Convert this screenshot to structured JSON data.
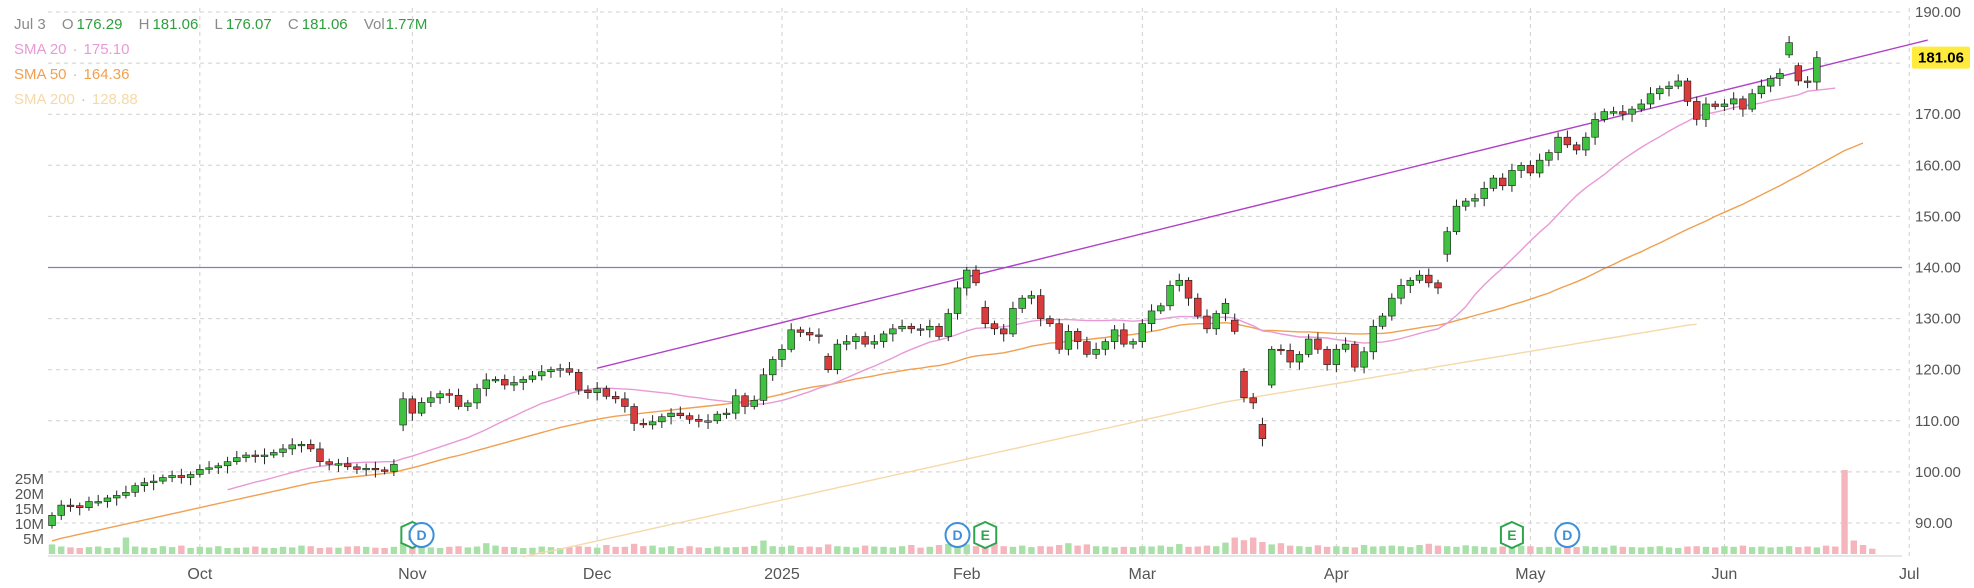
{
  "legend": {
    "date": "Jul 3",
    "open_key": "O",
    "open": "176.29",
    "high_key": "H",
    "high": "181.06",
    "low_key": "L",
    "low": "176.07",
    "close_key": "C",
    "close": "181.06",
    "vol_key": "Vol",
    "vol": "1.77M",
    "sma20_label": "SMA 20",
    "sma20_value": "175.10",
    "sma20_color": "#e89ad6",
    "sma50_label": "SMA 50",
    "sma50_value": "164.36",
    "sma50_color": "#f0a050",
    "sma200_label": "SMA 200",
    "sma200_value": "128.88",
    "sma200_color": "#f5d9a8",
    "separator": "·"
  },
  "last_price_label": "181.06",
  "colors": {
    "up": "#41c141",
    "down": "#d93c3c",
    "wick": "#222222",
    "vol_up": "#a8e0a8",
    "vol_down": "#f5b5bc",
    "trendline": "#b040c8",
    "hline": "#8080c0",
    "grid": "#d0d0d0",
    "last_price_bg": "#ffeb3b",
    "earnings": "#2ea44f",
    "dividend": "#3d8fd9"
  },
  "chart_data": {
    "type": "candlestick",
    "y_ticks": [
      "90.00",
      "100.00",
      "110.00",
      "120.00",
      "130.00",
      "140.00",
      "150.00",
      "160.00",
      "170.00",
      "180.00",
      "190.00"
    ],
    "ylim": [
      85,
      191
    ],
    "x_labels": [
      {
        "label": "Oct",
        "index": 16
      },
      {
        "label": "Nov",
        "index": 39
      },
      {
        "label": "Dec",
        "index": 59
      },
      {
        "label": "2025",
        "index": 79
      },
      {
        "label": "Feb",
        "index": 99
      },
      {
        "label": "Mar",
        "index": 118
      },
      {
        "label": "Apr",
        "index": 139
      },
      {
        "label": "May",
        "index": 160
      },
      {
        "label": "Jun",
        "index": 181
      },
      {
        "label": "Jul",
        "index": 201
      }
    ],
    "vol_ticks": [
      "5M",
      "10M",
      "15M",
      "20M",
      "25M"
    ],
    "vol_max_m": 28,
    "closes": [
      91.5,
      93.5,
      93.4,
      93.0,
      94.2,
      94.2,
      94.9,
      95.4,
      96.0,
      97.3,
      97.9,
      98.2,
      98.9,
      99.3,
      98.9,
      99.5,
      100.5,
      100.8,
      101.2,
      102.0,
      102.8,
      103.3,
      103.0,
      103.3,
      103.8,
      104.5,
      105.3,
      105.4,
      104.5,
      102.0,
      101.5,
      101.6,
      101.0,
      100.5,
      100.7,
      100.4,
      100.1,
      101.5,
      114.3,
      111.5,
      113.6,
      114.5,
      115.3,
      115.0,
      112.8,
      113.5,
      116.3,
      118.0,
      118.1,
      117.0,
      117.5,
      118.1,
      118.8,
      119.6,
      120.0,
      120.2,
      119.5,
      116.0,
      115.5,
      116.3,
      114.8,
      114.3,
      112.8,
      109.5,
      109.2,
      109.8,
      110.8,
      111.5,
      111.0,
      110.3,
      109.9,
      110.0,
      111.3,
      111.5,
      114.9,
      112.8,
      114.0,
      119.0,
      122.0,
      124.0,
      127.8,
      127.3,
      126.8,
      126.6,
      120.0,
      125.0,
      125.5,
      126.5,
      125.0,
      125.5,
      127.0,
      128.0,
      128.5,
      128.0,
      127.8,
      128.5,
      126.5,
      131.0,
      136.0,
      139.5,
      137.0,
      129.0,
      128.0,
      127.0,
      132.0,
      134.0,
      134.5,
      130.0,
      129.0,
      124.0,
      127.5,
      125.5,
      123.0,
      124.0,
      125.5,
      127.8,
      125.0,
      125.5,
      129.0,
      131.5,
      132.5,
      136.5,
      137.5,
      134.0,
      130.5,
      128.0,
      131.0,
      133.0,
      127.5,
      114.5,
      113.5,
      106.5,
      124.0,
      123.8,
      121.5,
      123.0,
      126.0,
      124.0,
      121.0,
      124.0,
      125.0,
      120.5,
      123.5,
      128.5,
      130.5,
      134.0,
      136.5,
      137.5,
      138.5,
      137.0,
      136.0,
      147.0,
      152.0,
      153.0,
      153.5,
      155.5,
      157.5,
      156.0,
      159.0,
      160.0,
      158.5,
      161.0,
      162.5,
      165.5,
      164.0,
      163.0,
      165.5,
      169.0,
      170.5,
      170.5,
      170.0,
      171.0,
      172.0,
      174.0,
      175.0,
      175.5,
      176.5,
      172.5,
      169.0,
      172.0,
      171.5,
      172.0,
      173.0,
      171.0,
      174.0,
      175.5,
      177.0,
      178.0,
      184.0,
      176.5,
      176.3,
      181.06
    ],
    "volumes": [
      3.2,
      2.5,
      2.2,
      2.0,
      2.3,
      2.5,
      2.0,
      2.2,
      5.5,
      2.5,
      2.2,
      2.0,
      2.6,
      2.3,
      2.8,
      2.0,
      2.4,
      2.2,
      2.6,
      2.0,
      2.1,
      2.2,
      2.5,
      2.1,
      2.0,
      2.4,
      2.2,
      2.8,
      2.6,
      2.0,
      2.2,
      2.1,
      2.5,
      2.6,
      2.4,
      2.1,
      2.0,
      2.4,
      4.0,
      3.3,
      2.6,
      2.2,
      2.0,
      2.4,
      2.6,
      2.2,
      2.5,
      3.6,
      2.8,
      2.4,
      2.3,
      2.0,
      2.1,
      2.5,
      2.3,
      2.0,
      2.2,
      2.6,
      2.4,
      2.1,
      3.0,
      2.4,
      2.4,
      3.4,
      2.6,
      2.8,
      2.2,
      2.6,
      2.0,
      2.6,
      2.2,
      2.0,
      2.5,
      2.2,
      2.3,
      2.4,
      2.7,
      4.5,
      2.6,
      2.4,
      2.8,
      2.3,
      2.5,
      2.3,
      3.2,
      2.6,
      2.4,
      2.2,
      2.8,
      2.5,
      2.4,
      2.2,
      2.6,
      3.0,
      2.1,
      2.4,
      3.0,
      3.4,
      2.6,
      3.2,
      2.6,
      3.0,
      3.6,
      2.6,
      2.4,
      2.8,
      2.3,
      2.6,
      2.5,
      3.0,
      3.6,
      2.8,
      3.2,
      2.6,
      2.5,
      2.2,
      2.4,
      2.3,
      2.6,
      2.5,
      2.8,
      2.4,
      3.3,
      2.4,
      2.5,
      2.8,
      2.6,
      3.8,
      5.5,
      4.6,
      5.5,
      4.0,
      3.2,
      3.6,
      2.8,
      2.6,
      2.4,
      2.9,
      2.4,
      2.6,
      2.4,
      2.2,
      3.0,
      2.5,
      2.6,
      2.8,
      2.6,
      2.3,
      3.0,
      3.4,
      2.8,
      2.6,
      2.4,
      2.9,
      2.6,
      2.4,
      2.2,
      2.5,
      2.4,
      2.8,
      2.6,
      2.3,
      2.4,
      2.2,
      2.5,
      2.3,
      2.6,
      2.4,
      2.2,
      2.8,
      2.4,
      2.3,
      2.2,
      2.4,
      2.6,
      2.2,
      2.0,
      2.5,
      2.6,
      2.4,
      2.2,
      2.6,
      2.4,
      2.8,
      2.3,
      2.5,
      2.2,
      2.4,
      2.6,
      2.3,
      2.5,
      2.2,
      2.8,
      2.5,
      28.0,
      4.5,
      3.0,
      1.77
    ],
    "sma20": [
      null,
      null,
      null,
      null,
      null,
      null,
      null,
      null,
      null,
      null,
      null,
      null,
      null,
      null,
      null,
      null,
      null,
      null,
      null,
      96.5,
      97.0,
      97.5,
      98.0,
      98.4,
      98.9,
      99.4,
      99.9,
      100.4,
      100.8,
      101.1,
      101.3,
      101.5,
      101.7,
      101.8,
      101.9,
      101.9,
      102.0,
      102.0,
      102.6,
      103.1,
      103.7,
      104.3,
      104.9,
      105.5,
      106.1,
      106.7,
      107.5,
      108.3,
      109.2,
      110.1,
      110.9,
      111.8,
      112.6,
      113.4,
      114.0,
      114.6,
      115.3,
      115.8,
      116.1,
      116.4,
      116.4,
      116.3,
      116.2,
      116.1,
      115.9,
      115.7,
      115.5,
      115.3,
      115.0,
      114.7,
      114.5,
      114.2,
      114.0,
      113.8,
      113.6,
      113.4,
      113.2,
      113.3,
      113.6,
      114.0,
      114.5,
      115.1,
      115.7,
      116.4,
      116.9,
      117.6,
      118.4,
      119.2,
      120.0,
      120.7,
      121.5,
      122.3,
      123.2,
      124.0,
      124.7,
      125.4,
      125.8,
      126.3,
      126.9,
      127.6,
      128.1,
      128.2,
      128.3,
      128.4,
      128.7,
      129.1,
      129.5,
      129.7,
      129.8,
      129.8,
      129.8,
      129.7,
      129.6,
      129.6,
      129.6,
      129.7,
      129.6,
      129.5,
      129.6,
      129.7,
      129.9,
      130.2,
      130.4,
      130.4,
      130.3,
      130.2,
      130.2,
      130.3,
      130.1,
      129.3,
      128.6,
      127.6,
      127.4,
      127.0,
      126.7,
      126.4,
      126.4,
      126.3,
      126.2,
      125.9,
      125.7,
      125.4,
      125.2,
      125.3,
      125.4,
      125.7,
      126.1,
      126.6,
      127.1,
      127.6,
      128.0,
      129.1,
      130.6,
      132.3,
      134.7,
      136.6,
      138.3,
      139.9,
      141.6,
      143.4,
      145.2,
      146.9,
      148.5,
      150.4,
      152.3,
      154.1,
      155.6,
      156.9,
      158.2,
      159.7,
      161.1,
      162.3,
      163.5,
      164.6,
      165.6,
      166.7,
      167.7,
      168.6,
      169.6,
      170.0,
      170.4,
      170.8,
      171.3,
      171.6,
      171.9,
      172.2,
      172.7,
      173.0,
      173.4,
      173.8,
      174.5,
      174.7,
      174.9,
      175.1
    ],
    "sma50": [
      86.5,
      87.0,
      87.4,
      87.8,
      88.2,
      88.6,
      89.0,
      89.4,
      89.8,
      90.2,
      90.6,
      91.0,
      91.4,
      91.8,
      92.2,
      92.6,
      93.0,
      93.4,
      93.8,
      94.2,
      94.6,
      95.0,
      95.4,
      95.8,
      96.2,
      96.6,
      97.0,
      97.4,
      97.8,
      98.1,
      98.4,
      98.7,
      98.9,
      99.1,
      99.3,
      99.5,
      99.7,
      99.9,
      100.4,
      100.8,
      101.3,
      101.8,
      102.3,
      102.8,
      103.2,
      103.7,
      104.2,
      104.7,
      105.2,
      105.7,
      106.2,
      106.7,
      107.2,
      107.7,
      108.2,
      108.7,
      109.1,
      109.5,
      109.9,
      110.3,
      110.6,
      110.9,
      111.1,
      111.3,
      111.5,
      111.7,
      111.9,
      112.1,
      112.3,
      112.5,
      112.7,
      112.9,
      113.1,
      113.3,
      113.6,
      113.8,
      114.0,
      114.4,
      114.8,
      115.2,
      115.7,
      116.1,
      116.5,
      116.8,
      117.0,
      117.4,
      117.8,
      118.2,
      118.5,
      118.8,
      119.2,
      119.5,
      119.8,
      120.1,
      120.3,
      120.6,
      120.8,
      121.2,
      121.7,
      122.3,
      122.7,
      122.9,
      123.1,
      123.3,
      123.7,
      124.1,
      124.6,
      124.9,
      125.2,
      125.3,
      125.6,
      125.8,
      125.9,
      126.1,
      126.3,
      126.6,
      126.7,
      126.9,
      127.2,
      127.5,
      127.8,
      128.3,
      128.7,
      128.9,
      129.0,
      129.0,
      129.1,
      129.2,
      129.0,
      128.6,
      128.2,
      127.7,
      127.7,
      127.6,
      127.5,
      127.4,
      127.4,
      127.3,
      127.2,
      127.1,
      127.1,
      127.0,
      127.0,
      127.1,
      127.1,
      127.3,
      127.6,
      127.9,
      128.2,
      128.5,
      128.7,
      129.1,
      129.6,
      130.1,
      130.6,
      131.1,
      131.6,
      132.1,
      132.7,
      133.2,
      133.8,
      134.4,
      135.0,
      135.8,
      136.5,
      137.2,
      138.0,
      138.9,
      139.8,
      140.6,
      141.5,
      142.3,
      143.1,
      144.0,
      144.8,
      145.7,
      146.6,
      147.5,
      148.3,
      149.1,
      150.0,
      150.8,
      151.6,
      152.4,
      153.3,
      154.2,
      155.1,
      156.0,
      157.0,
      157.9,
      158.9,
      159.9,
      160.9,
      161.9,
      162.9,
      163.6,
      164.36
    ],
    "sma200": [
      null,
      null,
      null,
      null,
      null,
      null,
      null,
      null,
      null,
      null,
      null,
      null,
      null,
      null,
      null,
      null,
      null,
      null,
      null,
      null,
      null,
      null,
      null,
      null,
      null,
      null,
      null,
      null,
      null,
      null,
      null,
      null,
      null,
      null,
      null,
      null,
      null,
      null,
      null,
      null,
      null,
      null,
      null,
      null,
      null,
      null,
      null,
      null,
      null,
      null,
      null,
      83.4,
      83.8,
      84.2,
      84.5,
      84.9,
      85.3,
      85.7,
      86.1,
      86.5,
      86.9,
      87.3,
      87.7,
      88.1,
      88.5,
      88.9,
      89.3,
      89.7,
      90.1,
      90.5,
      90.9,
      91.3,
      91.7,
      92.1,
      92.5,
      92.9,
      93.3,
      93.7,
      94.1,
      94.5,
      94.9,
      95.3,
      95.7,
      96.1,
      96.5,
      96.9,
      97.3,
      97.7,
      98.1,
      98.5,
      98.9,
      99.3,
      99.7,
      100.1,
      100.5,
      100.9,
      101.3,
      101.7,
      102.1,
      102.5,
      102.9,
      103.3,
      103.7,
      104.1,
      104.5,
      104.9,
      105.3,
      105.7,
      106.1,
      106.5,
      106.9,
      107.3,
      107.7,
      108.1,
      108.5,
      108.9,
      109.3,
      109.7,
      110.1,
      110.5,
      110.9,
      111.3,
      111.7,
      112.1,
      112.5,
      112.9,
      113.3,
      113.7,
      114.0,
      114.3,
      114.6,
      114.9,
      115.2,
      115.5,
      115.8,
      116.1,
      116.4,
      116.7,
      117.0,
      117.3,
      117.6,
      117.9,
      118.2,
      118.5,
      118.8,
      119.1,
      119.4,
      119.7,
      120.0,
      120.3,
      120.6,
      120.9,
      121.2,
      121.5,
      121.8,
      122.1,
      122.4,
      122.7,
      123.0,
      123.3,
      123.6,
      123.9,
      124.2,
      124.5,
      124.8,
      125.1,
      125.4,
      125.7,
      126.0,
      126.3,
      126.6,
      126.9,
      127.2,
      127.5,
      127.8,
      128.1,
      128.4,
      128.7,
      128.88
    ],
    "trendline": {
      "start_index": 59,
      "start_price": 120.3,
      "end_index": 203,
      "end_price": 184.5
    },
    "horizontal_line_price": 140.0,
    "events": [
      {
        "type": "E",
        "index": 39
      },
      {
        "type": "D",
        "index": 40
      },
      {
        "type": "D",
        "index": 98
      },
      {
        "type": "E",
        "index": 101
      },
      {
        "type": "E",
        "index": 158
      },
      {
        "type": "D",
        "index": 164
      }
    ]
  }
}
